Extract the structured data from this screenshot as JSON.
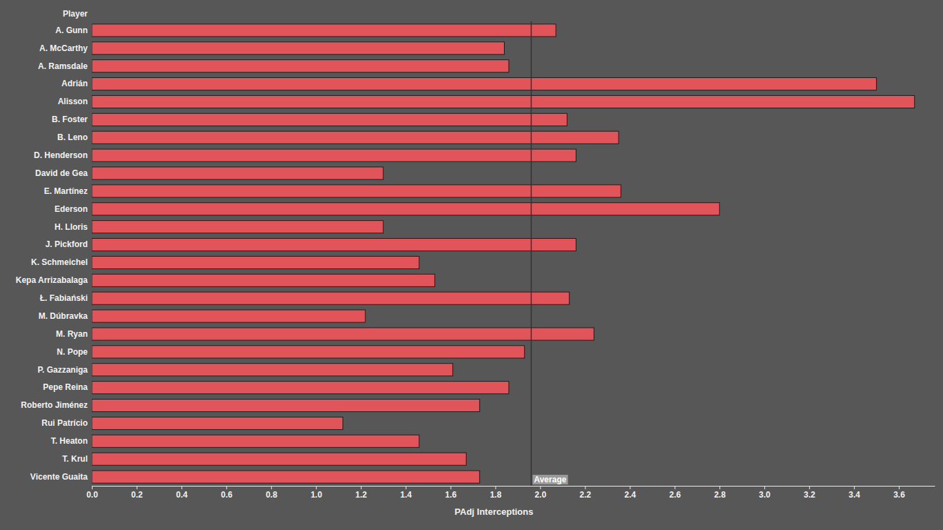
{
  "chart_data": {
    "type": "bar",
    "orientation": "horizontal",
    "x_label": "PAdj Interceptions",
    "y_label": "Player",
    "categories": [
      "A. Gunn",
      "A. McCarthy",
      "A. Ramsdale",
      "Adrián",
      "Alisson",
      "B. Foster",
      "B. Leno",
      "D. Henderson",
      "David de Gea",
      "E. Martínez",
      "Ederson",
      "H. Lloris",
      "J. Pickford",
      "K. Schmeichel",
      "Kepa Arrizabalaga",
      "Ł. Fabiański",
      "M. Dúbravka",
      "M. Ryan",
      "N. Pope",
      "P. Gazzaniga",
      "Pepe Reina",
      "Roberto Jiménez",
      "Rui Patrício",
      "T. Heaton",
      "T. Krul",
      "Vicente Guaita"
    ],
    "values": [
      2.07,
      1.84,
      1.86,
      3.5,
      3.67,
      2.12,
      2.35,
      2.16,
      1.3,
      2.36,
      2.8,
      1.3,
      2.16,
      1.46,
      1.53,
      2.13,
      1.22,
      2.24,
      1.93,
      1.61,
      1.86,
      1.73,
      1.12,
      1.46,
      1.67,
      1.73
    ],
    "color": "#e0545a",
    "xlim": [
      0,
      3.76
    ],
    "xticks": [
      {
        "value": 0,
        "label": "0.0"
      },
      {
        "value": 0.2,
        "label": "0.2"
      },
      {
        "value": 0.4,
        "label": "0.4"
      },
      {
        "value": 0.6,
        "label": "0.6"
      },
      {
        "value": 0.8,
        "label": "0.8"
      },
      {
        "value": 1,
        "label": "1.0"
      },
      {
        "value": 1.2,
        "label": "1.2"
      },
      {
        "value": 1.4,
        "label": "1.4"
      },
      {
        "value": 1.6,
        "label": "1.6"
      },
      {
        "value": 1.8,
        "label": "1.8"
      },
      {
        "value": 2,
        "label": "2.0"
      },
      {
        "value": 2.2,
        "label": "2.2"
      },
      {
        "value": 2.4,
        "label": "2.4"
      },
      {
        "value": 2.6,
        "label": "2.6"
      },
      {
        "value": 2.8,
        "label": "2.8"
      },
      {
        "value": 3,
        "label": "3.0"
      },
      {
        "value": 3.2,
        "label": "3.2"
      },
      {
        "value": 3.4,
        "label": "3.4"
      },
      {
        "value": 3.6,
        "label": "3.6"
      }
    ],
    "grid": false,
    "reference_line": {
      "value": 1.96,
      "label": "Average"
    }
  }
}
